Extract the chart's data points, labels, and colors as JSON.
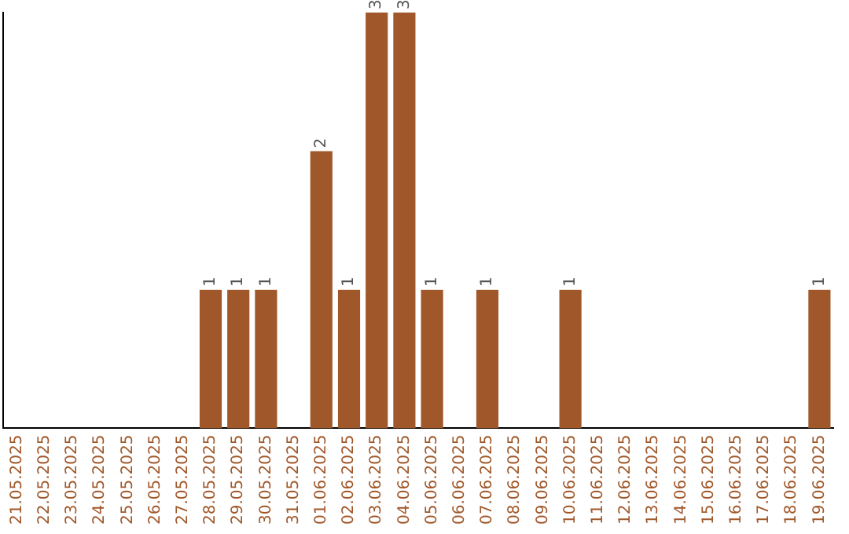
{
  "chart_data": {
    "type": "bar",
    "categories": [
      "21.05.2025",
      "22.05.2025",
      "23.05.2025",
      "24.05.2025",
      "25.05.2025",
      "26.05.2025",
      "27.05.2025",
      "28.05.2025",
      "29.05.2025",
      "30.05.2025",
      "31.05.2025",
      "01.06.2025",
      "02.06.2025",
      "03.06.2025",
      "04.06.2025",
      "05.06.2025",
      "06.06.2025",
      "07.06.2025",
      "08.06.2025",
      "09.06.2025",
      "10.06.2025",
      "11.06.2025",
      "12.06.2025",
      "13.06.2025",
      "14.06.2025",
      "15.06.2025",
      "16.06.2025",
      "17.06.2025",
      "18.06.2025",
      "19.06.2025"
    ],
    "values": [
      0,
      0,
      0,
      0,
      0,
      0,
      0,
      1,
      1,
      1,
      0,
      2,
      1,
      3,
      3,
      1,
      0,
      1,
      0,
      0,
      1,
      0,
      0,
      0,
      0,
      0,
      0,
      0,
      0,
      1
    ],
    "value_labels": [
      null,
      null,
      null,
      null,
      null,
      null,
      null,
      "1",
      "1",
      "1",
      null,
      "2",
      "1",
      "3",
      "3",
      "1",
      null,
      "1",
      null,
      null,
      "1",
      null,
      null,
      null,
      null,
      null,
      null,
      null,
      null,
      "1"
    ],
    "color": "#a0582a",
    "ylim": [
      0,
      3
    ],
    "tick_labels": "x",
    "grid": false,
    "legend": false
  }
}
